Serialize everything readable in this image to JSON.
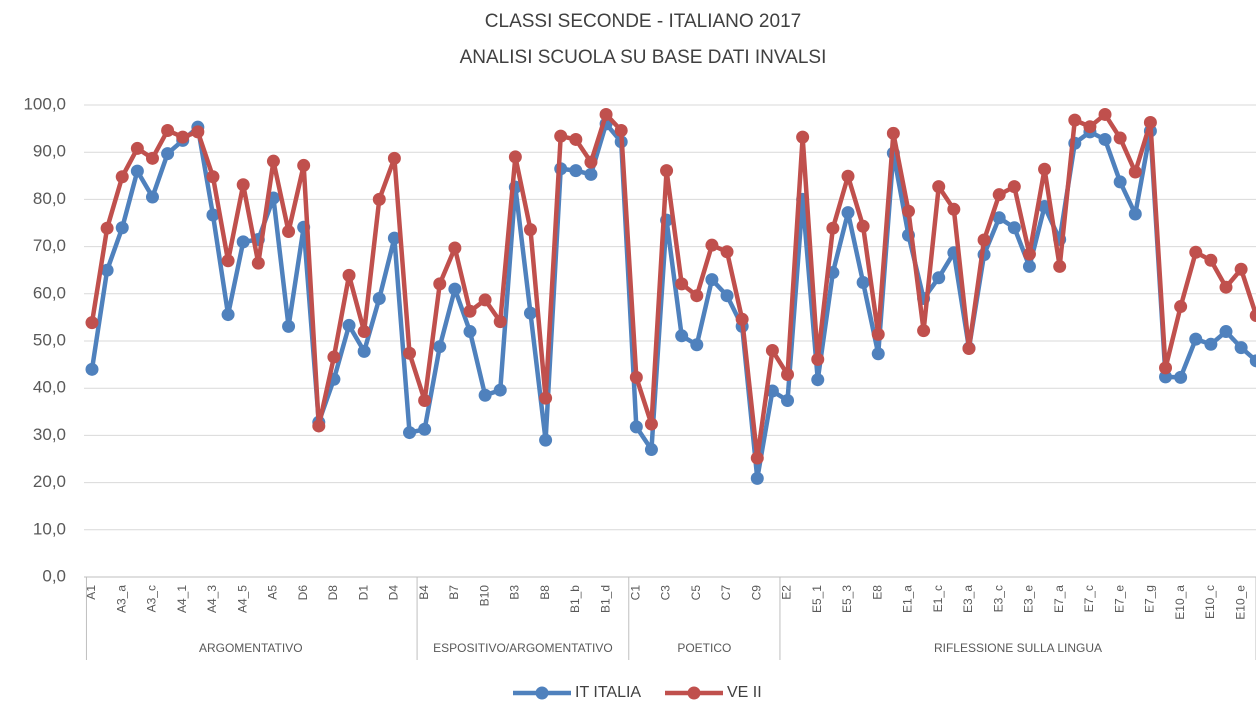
{
  "chart_data": {
    "type": "line",
    "title": "CLASSI SECONDE - ITALIANO 2017",
    "subtitle": "ANALISI SCUOLA SU BASE DATI INVALSI",
    "categories": [
      "A1",
      null,
      "A3_a",
      null,
      "A3_c",
      null,
      "A4_1",
      null,
      "A4_3",
      null,
      "A4_5",
      null,
      "A5",
      null,
      "D6",
      null,
      "D8",
      null,
      "D1",
      null,
      "D4",
      null,
      "B4",
      null,
      "B7",
      null,
      "B10",
      null,
      "B3",
      null,
      "B8",
      null,
      "B1_b",
      null,
      "B1_d",
      null,
      "C1",
      null,
      "C3",
      null,
      "C5",
      null,
      "C7",
      null,
      "C9",
      null,
      "E2",
      null,
      "E5_1",
      null,
      "E5_3",
      null,
      "E8",
      null,
      "E1_a",
      null,
      "E1_c",
      null,
      "E3_a",
      null,
      "E3_c",
      null,
      "E3_e",
      null,
      "E7_a",
      null,
      "E7_c",
      null,
      "E7_e",
      null,
      "E7_g",
      null,
      "E10_a",
      null,
      "E10_c",
      null,
      "E10_e",
      null
    ],
    "groups": [
      {
        "label": "ARGOMENTATIVO",
        "size": 22
      },
      {
        "label": "ESPOSITIVO/ARGOMENTATIVO",
        "size": 14
      },
      {
        "label": "POETICO",
        "size": 10
      },
      {
        "label": "RIFLESSIONE SULLA LINGUA",
        "size": 32
      }
    ],
    "series": [
      {
        "name": "IT ITALIA",
        "color": "#4f81bd",
        "values": [
          44.0,
          65.0,
          74.0,
          86.0,
          80.5,
          89.7,
          92.5,
          95.3,
          76.7,
          55.6,
          71.0,
          71.5,
          80.3,
          53.1,
          74.1,
          32.8,
          41.9,
          53.3,
          47.8,
          59.0,
          71.8,
          30.6,
          31.3,
          48.8,
          61.0,
          52.0,
          38.5,
          39.6,
          82.6,
          55.9,
          29.0,
          86.5,
          86.1,
          85.3,
          96.0,
          92.2,
          31.8,
          27.0,
          75.6,
          51.1,
          49.2,
          63.0,
          59.6,
          53.1,
          20.9,
          39.4,
          37.4,
          80.0,
          41.8,
          64.5,
          77.2,
          62.4,
          47.3,
          89.8,
          72.4,
          59.0,
          63.4,
          68.7,
          48.5,
          68.3,
          76.1,
          74.0,
          65.8,
          78.5,
          71.5,
          91.9,
          94.3,
          92.7,
          83.7,
          76.9,
          94.5,
          42.4,
          42.3,
          50.4,
          49.3,
          52.0,
          48.6,
          45.8
        ]
      },
      {
        "name": "VE II",
        "color": "#c0504d",
        "values": [
          53.9,
          73.9,
          84.8,
          90.8,
          88.7,
          94.6,
          93.2,
          94.3,
          84.8,
          67.0,
          83.1,
          66.5,
          88.1,
          73.2,
          87.2,
          32.0,
          46.6,
          63.9,
          52.0,
          80.0,
          88.7,
          47.4,
          37.4,
          62.1,
          69.7,
          56.3,
          58.7,
          54.1,
          89.0,
          73.6,
          37.9,
          93.4,
          92.7,
          87.9,
          98.0,
          94.6,
          42.3,
          32.4,
          86.1,
          62.1,
          59.6,
          70.3,
          68.9,
          54.6,
          25.2,
          48.0,
          42.9,
          93.2,
          46.1,
          73.9,
          84.9,
          74.3,
          51.4,
          94.0,
          77.5,
          52.2,
          82.7,
          77.9,
          48.4,
          71.4,
          81.0,
          82.7,
          68.4,
          86.4,
          65.8,
          96.8,
          95.4,
          98.0,
          93.0,
          85.8,
          96.3,
          44.3,
          57.3,
          68.8,
          67.1,
          61.4,
          65.2,
          55.4
        ]
      }
    ],
    "ylim": [
      0,
      100
    ],
    "yticks": [
      {
        "value": 0,
        "label": "0,0"
      },
      {
        "value": 10,
        "label": "10,0"
      },
      {
        "value": 20,
        "label": "20,0"
      },
      {
        "value": 30,
        "label": "30,0"
      },
      {
        "value": 40,
        "label": "40,0"
      },
      {
        "value": 50,
        "label": "50,0"
      },
      {
        "value": 60,
        "label": "60,0"
      },
      {
        "value": 70,
        "label": "70,0"
      },
      {
        "value": 80,
        "label": "80,0"
      },
      {
        "value": 90,
        "label": "90,0"
      },
      {
        "value": 100,
        "label": "100,0"
      }
    ],
    "grid": true,
    "legend": "bottom"
  }
}
